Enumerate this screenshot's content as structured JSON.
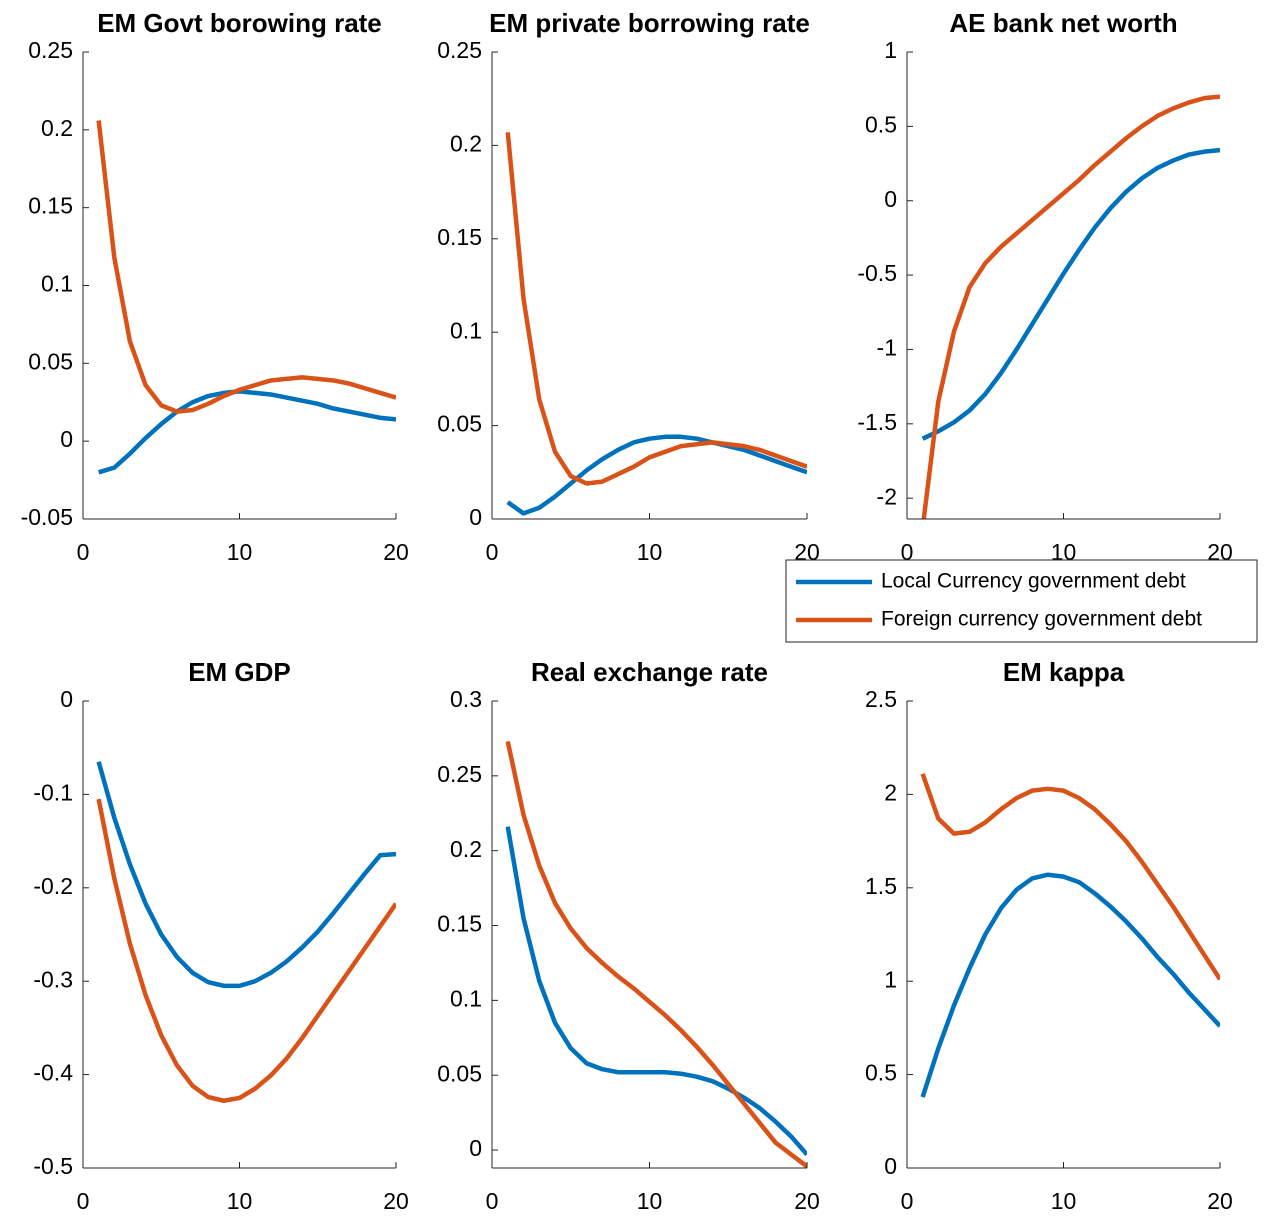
{
  "chart_data": [
    {
      "type": "line",
      "title": "EM Govt borowing rate",
      "x": [
        1,
        2,
        3,
        4,
        5,
        6,
        7,
        8,
        9,
        10,
        11,
        12,
        13,
        14,
        15,
        16,
        17,
        18,
        19,
        20
      ],
      "xlim": [
        0,
        20
      ],
      "xticks": [
        0,
        10,
        20
      ],
      "ylim": [
        -0.05,
        0.25
      ],
      "yticks": [
        -0.05,
        0,
        0.05,
        0.1,
        0.15,
        0.2,
        0.25
      ],
      "series": [
        {
          "color": "#0072bd",
          "values": [
            -0.02,
            -0.017,
            -0.008,
            0.002,
            0.011,
            0.019,
            0.025,
            0.029,
            0.031,
            0.032,
            0.031,
            0.03,
            0.028,
            0.026,
            0.024,
            0.021,
            0.019,
            0.017,
            0.015,
            0.014
          ]
        },
        {
          "color": "#d95319",
          "values": [
            0.206,
            0.118,
            0.064,
            0.036,
            0.023,
            0.019,
            0.02,
            0.024,
            0.029,
            0.033,
            0.036,
            0.039,
            0.04,
            0.041,
            0.04,
            0.039,
            0.037,
            0.034,
            0.031,
            0.028
          ]
        }
      ]
    },
    {
      "type": "line",
      "title": "EM private borrowing rate",
      "x": [
        1,
        2,
        3,
        4,
        5,
        6,
        7,
        8,
        9,
        10,
        11,
        12,
        13,
        14,
        15,
        16,
        17,
        18,
        19,
        20
      ],
      "xlim": [
        0,
        20
      ],
      "xticks": [
        0,
        10,
        20
      ],
      "ylim": [
        0,
        0.25
      ],
      "yticks": [
        0,
        0.05,
        0.1,
        0.15,
        0.2,
        0.25
      ],
      "series": [
        {
          "color": "#0072bd",
          "values": [
            0.009,
            0.003,
            0.006,
            0.012,
            0.019,
            0.026,
            0.032,
            0.037,
            0.041,
            0.043,
            0.044,
            0.044,
            0.043,
            0.041,
            0.039,
            0.037,
            0.034,
            0.031,
            0.028,
            0.025
          ]
        },
        {
          "color": "#d95319",
          "values": [
            0.207,
            0.118,
            0.064,
            0.036,
            0.023,
            0.019,
            0.02,
            0.024,
            0.028,
            0.033,
            0.036,
            0.039,
            0.04,
            0.041,
            0.04,
            0.039,
            0.037,
            0.034,
            0.031,
            0.028
          ]
        }
      ]
    },
    {
      "type": "line",
      "title": "AE bank net worth",
      "x": [
        1,
        2,
        3,
        4,
        5,
        6,
        7,
        8,
        9,
        10,
        11,
        12,
        13,
        14,
        15,
        16,
        17,
        18,
        19,
        20
      ],
      "xlim": [
        0,
        20
      ],
      "xticks": [
        0,
        10,
        20
      ],
      "ylim": [
        -2.14,
        1
      ],
      "yticks": [
        -2,
        -1.5,
        -1,
        -0.5,
        0,
        0.5,
        1
      ],
      "legend": "below",
      "series": [
        {
          "name": "Local Currency government debt",
          "color": "#0072bd",
          "values": [
            -1.6,
            -1.55,
            -1.49,
            -1.41,
            -1.3,
            -1.16,
            -1,
            -0.83,
            -0.66,
            -0.49,
            -0.33,
            -0.18,
            -0.05,
            0.06,
            0.15,
            0.22,
            0.27,
            0.31,
            0.33,
            0.34
          ]
        },
        {
          "name": "Foreign currency government debt",
          "color": "#d95319",
          "values": [
            -2.2,
            -1.35,
            -0.88,
            -0.58,
            -0.42,
            -0.31,
            -0.22,
            -0.13,
            -0.04,
            0.05,
            0.14,
            0.24,
            0.33,
            0.42,
            0.5,
            0.57,
            0.62,
            0.66,
            0.69,
            0.7
          ]
        }
      ]
    },
    {
      "type": "line",
      "title": "EM GDP",
      "x": [
        1,
        2,
        3,
        4,
        5,
        6,
        7,
        8,
        9,
        10,
        11,
        12,
        13,
        14,
        15,
        16,
        17,
        18,
        19,
        20
      ],
      "xlim": [
        0,
        20
      ],
      "xticks": [
        0,
        10,
        20
      ],
      "ylim": [
        -0.5,
        0
      ],
      "yticks": [
        -0.5,
        -0.4,
        -0.3,
        -0.2,
        -0.1,
        0
      ],
      "series": [
        {
          "color": "#0072bd",
          "values": [
            -0.065,
            -0.125,
            -0.175,
            -0.217,
            -0.25,
            -0.274,
            -0.291,
            -0.301,
            -0.305,
            -0.305,
            -0.3,
            -0.291,
            -0.279,
            -0.264,
            -0.247,
            -0.227,
            -0.206,
            -0.185,
            -0.165,
            -0.164
          ]
        },
        {
          "color": "#d95319",
          "values": [
            -0.105,
            -0.19,
            -0.26,
            -0.315,
            -0.358,
            -0.39,
            -0.412,
            -0.424,
            -0.428,
            -0.425,
            -0.415,
            -0.401,
            -0.383,
            -0.361,
            -0.337,
            -0.313,
            -0.289,
            -0.265,
            -0.241,
            -0.217
          ]
        }
      ]
    },
    {
      "type": "line",
      "title": "Real exchange rate",
      "x": [
        1,
        2,
        3,
        4,
        5,
        6,
        7,
        8,
        9,
        10,
        11,
        12,
        13,
        14,
        15,
        16,
        17,
        18,
        19,
        20
      ],
      "xlim": [
        0,
        20
      ],
      "xticks": [
        0,
        10,
        20
      ],
      "ylim": [
        -0.012,
        0.3
      ],
      "yticks": [
        0,
        0.05,
        0.1,
        0.15,
        0.2,
        0.25,
        0.3
      ],
      "series": [
        {
          "color": "#0072bd",
          "values": [
            0.216,
            0.155,
            0.113,
            0.085,
            0.068,
            0.058,
            0.054,
            0.052,
            0.052,
            0.052,
            0.052,
            0.051,
            0.049,
            0.046,
            0.041,
            0.035,
            0.028,
            0.019,
            0.009,
            -0.003
          ]
        },
        {
          "color": "#d95319",
          "values": [
            0.273,
            0.224,
            0.19,
            0.165,
            0.148,
            0.135,
            0.125,
            0.116,
            0.108,
            0.099,
            0.09,
            0.08,
            0.069,
            0.057,
            0.044,
            0.031,
            0.018,
            0.005,
            -0.003,
            -0.011
          ]
        }
      ]
    },
    {
      "type": "line",
      "title": "EM kappa",
      "x": [
        1,
        2,
        3,
        4,
        5,
        6,
        7,
        8,
        9,
        10,
        11,
        12,
        13,
        14,
        15,
        16,
        17,
        18,
        19,
        20
      ],
      "xlim": [
        0,
        20
      ],
      "xticks": [
        0,
        10,
        20
      ],
      "ylim": [
        0,
        2.5
      ],
      "yticks": [
        0,
        0.5,
        1,
        1.5,
        2,
        2.5
      ],
      "series": [
        {
          "color": "#0072bd",
          "values": [
            0.38,
            0.64,
            0.87,
            1.07,
            1.25,
            1.39,
            1.49,
            1.55,
            1.57,
            1.56,
            1.53,
            1.47,
            1.4,
            1.32,
            1.23,
            1.13,
            1.04,
            0.94,
            0.85,
            0.76
          ]
        },
        {
          "color": "#d95319",
          "values": [
            2.11,
            1.87,
            1.79,
            1.8,
            1.85,
            1.92,
            1.98,
            2.02,
            2.03,
            2.02,
            1.98,
            1.92,
            1.84,
            1.75,
            1.64,
            1.52,
            1.4,
            1.27,
            1.14,
            1.01
          ]
        }
      ]
    }
  ]
}
